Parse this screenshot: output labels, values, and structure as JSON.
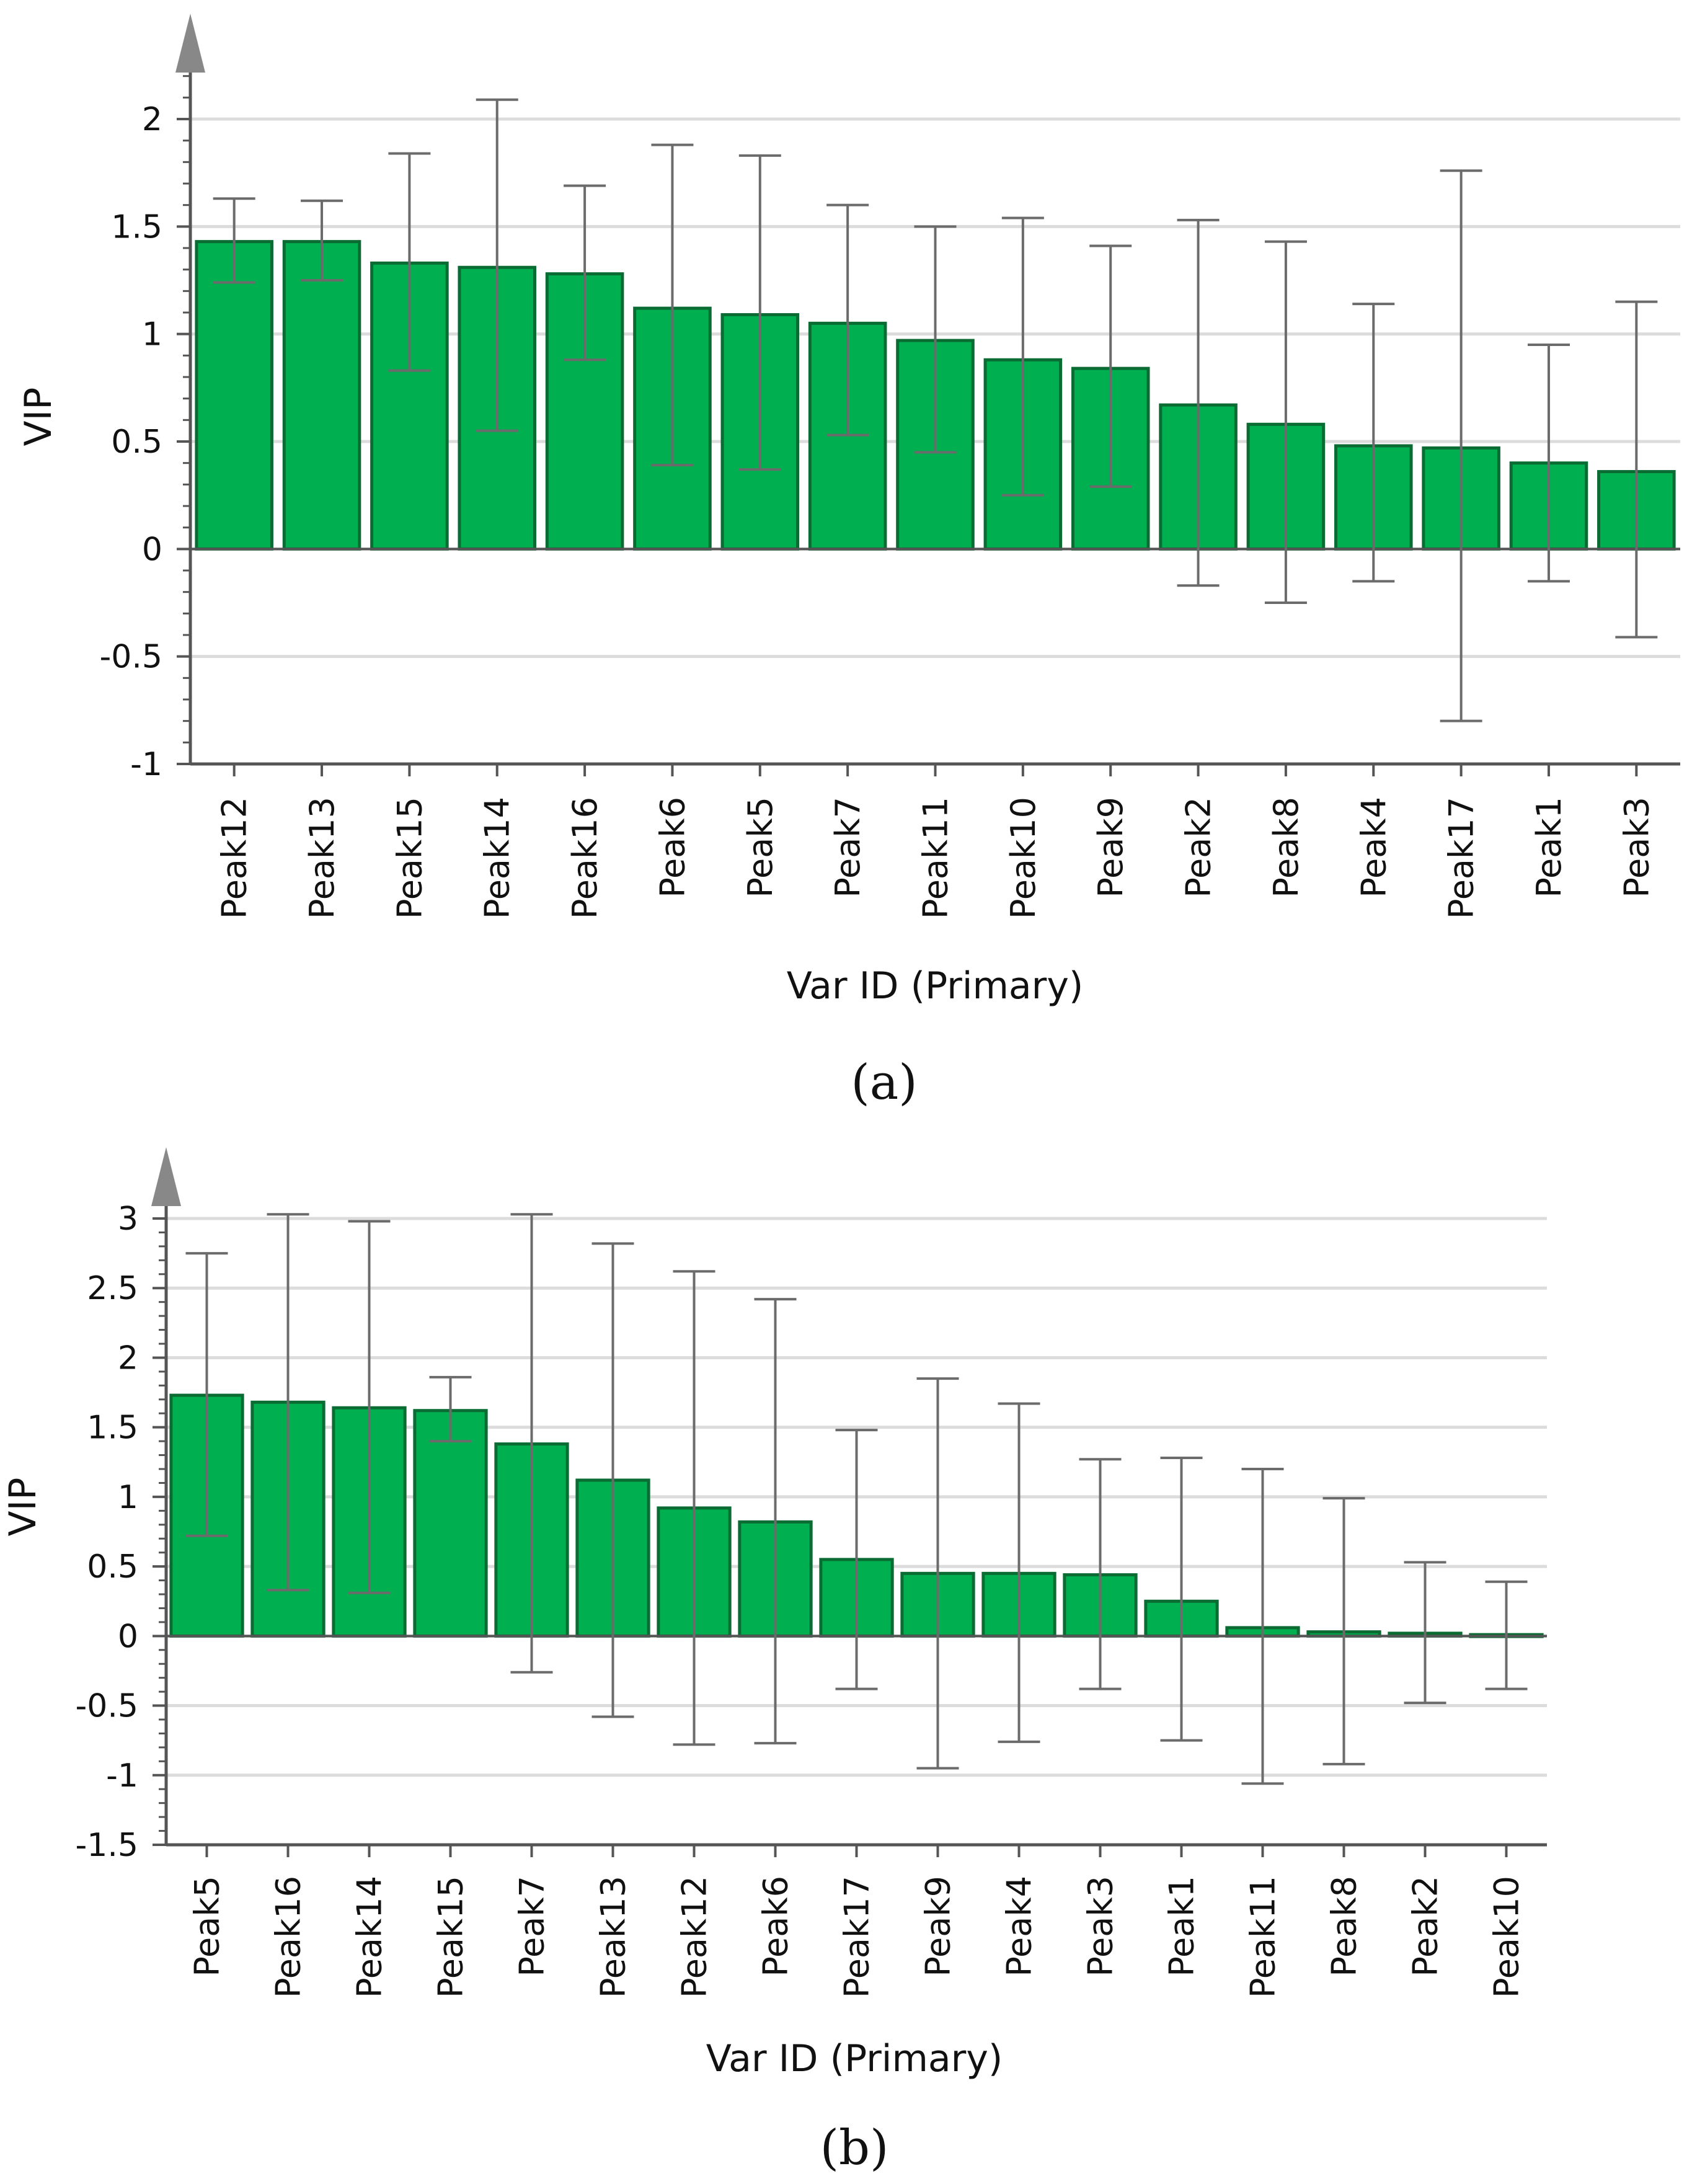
{
  "colors": {
    "bar_fill": "#00b050",
    "bar_stroke": "#0a6b33",
    "errorbar": "#6b6b6b",
    "grid": "#dcdcdc",
    "axis": "#555555",
    "arrow": "#888888"
  },
  "chart_data": [
    {
      "type": "bar",
      "panel_label": "(a)",
      "ylabel": "VIP",
      "xlabel": "Var ID (Primary)",
      "ylim": [
        -1,
        2
      ],
      "yticks": [
        -1,
        -0.5,
        0,
        0.5,
        1,
        1.5,
        2
      ],
      "ytick_labels": [
        "-1",
        "-0.5",
        "0",
        "0.5",
        "1",
        "1.5",
        "2"
      ],
      "grid": true,
      "categories": [
        "Peak12",
        "Peak13",
        "Peak15",
        "Peak14",
        "Peak16",
        "Peak6",
        "Peak5",
        "Peak7",
        "Peak11",
        "Peak10",
        "Peak9",
        "Peak2",
        "Peak8",
        "Peak4",
        "Peak17",
        "Peak1",
        "Peak3"
      ],
      "values": [
        1.43,
        1.43,
        1.33,
        1.31,
        1.28,
        1.12,
        1.09,
        1.05,
        0.97,
        0.88,
        0.84,
        0.67,
        0.58,
        0.48,
        0.47,
        0.4,
        0.36
      ],
      "err_low": [
        1.24,
        1.25,
        0.83,
        0.55,
        0.88,
        0.39,
        0.37,
        0.53,
        0.45,
        0.25,
        0.29,
        -0.17,
        -0.25,
        -0.15,
        -0.8,
        -0.15,
        -0.41
      ],
      "err_high": [
        1.63,
        1.62,
        1.84,
        2.09,
        1.69,
        1.88,
        1.83,
        1.6,
        1.5,
        1.54,
        1.41,
        1.53,
        1.43,
        1.14,
        1.76,
        0.95,
        1.15
      ]
    },
    {
      "type": "bar",
      "panel_label": "(b)",
      "ylabel": "VIP",
      "xlabel": "Var ID (Primary)",
      "ylim": [
        -1.5,
        3
      ],
      "yticks": [
        -1.5,
        -1,
        -0.5,
        0,
        0.5,
        1,
        1.5,
        2,
        2.5,
        3
      ],
      "ytick_labels": [
        "-1.5",
        "-1",
        "-0.5",
        "0",
        "0.5",
        "1",
        "1.5",
        "2",
        "2.5",
        "3"
      ],
      "grid": true,
      "categories": [
        "Peak5",
        "Peak16",
        "Peak14",
        "Peak15",
        "Peak7",
        "Peak13",
        "Peak12",
        "Peak6",
        "Peak17",
        "Peak9",
        "Peak4",
        "Peak3",
        "Peak1",
        "Peak11",
        "Peak8",
        "Peak2",
        "Peak10"
      ],
      "values": [
        1.73,
        1.68,
        1.64,
        1.62,
        1.38,
        1.12,
        0.92,
        0.82,
        0.55,
        0.45,
        0.45,
        0.44,
        0.25,
        0.06,
        0.03,
        0.02,
        0.01
      ],
      "err_low": [
        0.72,
        0.33,
        0.31,
        1.4,
        -0.26,
        -0.58,
        -0.78,
        -0.77,
        -0.38,
        -0.95,
        -0.76,
        -0.38,
        -0.75,
        -1.06,
        -0.92,
        -0.48,
        -0.38
      ],
      "err_high": [
        2.75,
        3.03,
        2.98,
        1.86,
        3.03,
        2.82,
        2.62,
        2.42,
        1.48,
        1.85,
        1.67,
        1.27,
        1.28,
        1.2,
        0.99,
        0.53,
        0.39
      ]
    }
  ]
}
